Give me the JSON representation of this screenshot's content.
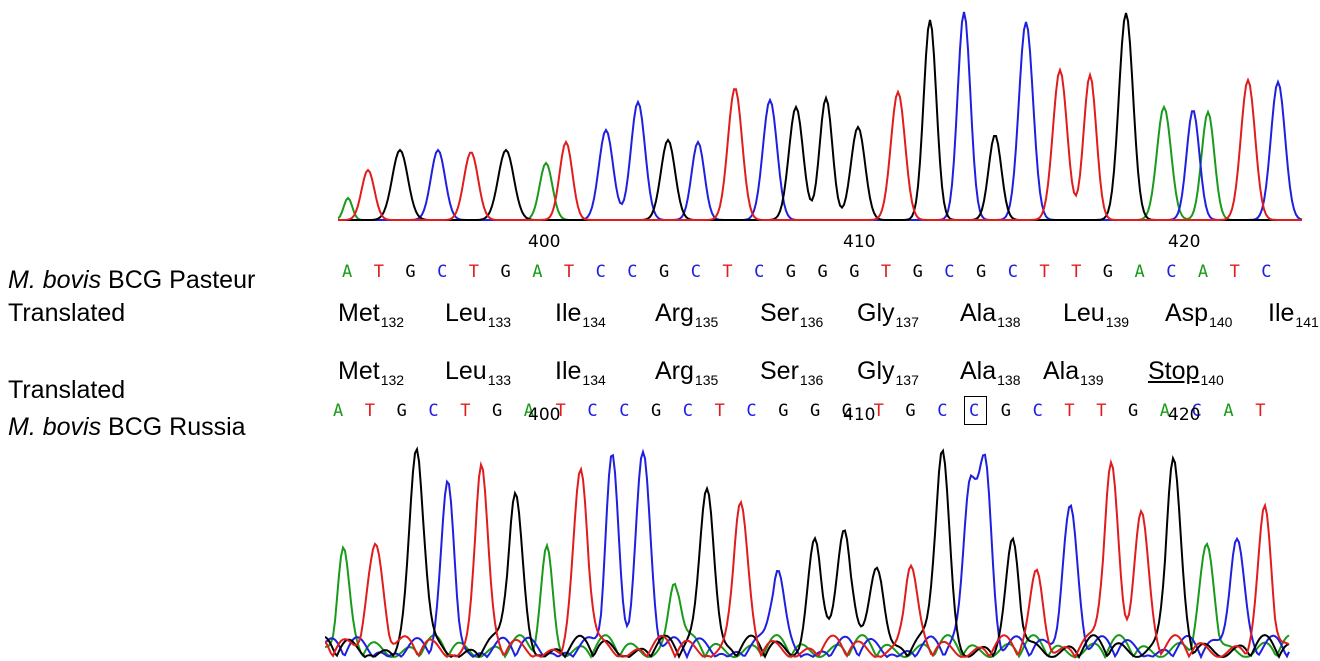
{
  "colors": {
    "A": "#1a9a1a",
    "C": "#1f1fe0",
    "G": "#000000",
    "T": "#e01c1c"
  },
  "labels": {
    "top_strain_italic": "M. bovis",
    "top_strain_rest": " BCG Pasteur",
    "top_translated": "Translated",
    "bottom_translated": "Translated",
    "bottom_strain_italic": "M. bovis",
    "bottom_strain_rest": " BCG Russia"
  },
  "top": {
    "ticks": [
      "400",
      "410",
      "420"
    ],
    "bases": [
      "A",
      "T",
      "G",
      "C",
      "T",
      "G",
      "A",
      "T",
      "C",
      "C",
      "G",
      "C",
      "T",
      "C",
      "G",
      "G",
      "G",
      "T",
      "G",
      "C",
      "G",
      "C",
      "T",
      "T",
      "G",
      "A",
      "C",
      "A",
      "T",
      "C"
    ],
    "residues": [
      {
        "name": "Met",
        "num": "132"
      },
      {
        "name": "Leu",
        "num": "133"
      },
      {
        "name": "Ile",
        "num": "134"
      },
      {
        "name": "Arg",
        "num": "135"
      },
      {
        "name": "Ser",
        "num": "136"
      },
      {
        "name": "Gly",
        "num": "137"
      },
      {
        "name": "Ala",
        "num": "138"
      },
      {
        "name": "Leu",
        "num": "139"
      },
      {
        "name": "Asp",
        "num": "140"
      },
      {
        "name": "Ile",
        "num": "141"
      }
    ]
  },
  "bottom": {
    "ticks": [
      "400",
      "410",
      "420"
    ],
    "bases": [
      "A",
      "T",
      "G",
      "C",
      "T",
      "G",
      "A",
      "T",
      "C",
      "C",
      "G",
      "C",
      "T",
      "C",
      "G",
      "G",
      "G",
      "T",
      "G",
      "C",
      "C",
      "G",
      "C",
      "T",
      "T",
      "G",
      "A",
      "C",
      "A",
      "T"
    ],
    "boxed_base_index": 20,
    "residues": [
      {
        "name": "Met",
        "num": "132"
      },
      {
        "name": "Leu",
        "num": "133"
      },
      {
        "name": "Ile",
        "num": "134"
      },
      {
        "name": "Arg",
        "num": "135"
      },
      {
        "name": "Ser",
        "num": "136"
      },
      {
        "name": "Gly",
        "num": "137"
      },
      {
        "name": "Ala",
        "num": "138"
      },
      {
        "name": "Ala",
        "num": "139"
      },
      {
        "name": "Stop",
        "num": "140",
        "underline": true
      }
    ]
  }
}
